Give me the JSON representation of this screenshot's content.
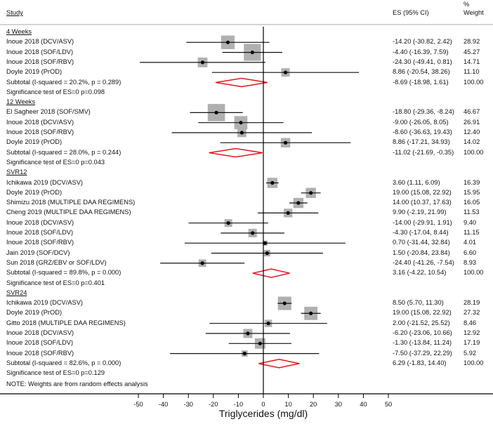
{
  "chart_data": {
    "type": "forest",
    "xlabel": "Triglycerides (mg/dl)",
    "xlim": [
      -50,
      50
    ],
    "xticks": [
      -50,
      -40,
      -30,
      -20,
      -10,
      0,
      10,
      20,
      30,
      40,
      50
    ],
    "headers": {
      "study": "Study",
      "es": "ES (95% CI)",
      "weight_pct": "%",
      "weight": "Weight"
    },
    "note": "NOTE: Weights are from random effects analysis",
    "groups": [
      {
        "name": "4 Weeks",
        "studies": [
          {
            "label": "Inoue 2018 (DCV/ASV)",
            "es": -14.2,
            "lo": -30.82,
            "hi": 2.42,
            "es_text": "-14.20 (-30.82, 2.42)",
            "weight": "28.92"
          },
          {
            "label": "Inoue 2018 (SOF/LDV)",
            "es": -4.4,
            "lo": -16.39,
            "hi": 7.59,
            "es_text": "-4.40 (-16.39, 7.59)",
            "weight": "45.27"
          },
          {
            "label": "Inoue 2018 (SOF/RBV)",
            "es": -24.3,
            "lo": -49.41,
            "hi": 0.81,
            "es_text": "-24.30 (-49.41, 0.81)",
            "weight": "14.71"
          },
          {
            "label": "Doyle 2019 (PrOD)",
            "es": 8.86,
            "lo": -20.54,
            "hi": 38.26,
            "es_text": "8.86 (-20.54, 38.26)",
            "weight": "11.10"
          }
        ],
        "subtotal": {
          "label": "Subtotal  (I-squared = 20.2%, p = 0.289)",
          "es": -8.69,
          "lo": -18.98,
          "hi": 1.61,
          "es_text": "-8.69 (-18.98, 1.61)",
          "weight": "100.00"
        },
        "sig": "Significance test of ES=0 p=0.098"
      },
      {
        "name": "12 Weeks",
        "studies": [
          {
            "label": "El Sagheer 2018 (SOF/SMV)",
            "es": -18.8,
            "lo": -29.36,
            "hi": -8.24,
            "es_text": "-18.80 (-29.36, -8.24)",
            "weight": "46.67"
          },
          {
            "label": "Inoue 2018 (DCV/ASV)",
            "es": -9.0,
            "lo": -26.05,
            "hi": 8.05,
            "es_text": "-9.00 (-26.05, 8.05)",
            "weight": "26.91"
          },
          {
            "label": "Inoue 2018 (SOF/RBV)",
            "es": -8.6,
            "lo": -36.63,
            "hi": 19.43,
            "es_text": "-8.60 (-36.63, 19.43)",
            "weight": "12.40"
          },
          {
            "label": "Doyle 2019 (PrOD)",
            "es": 8.86,
            "lo": -17.21,
            "hi": 34.93,
            "es_text": "8.86 (-17.21, 34.93)",
            "weight": "14.02"
          }
        ],
        "subtotal": {
          "label": "Subtotal  (I-squared = 28.0%, p = 0.244)",
          "es": -11.02,
          "lo": -21.69,
          "hi": -0.35,
          "es_text": "-11.02 (-21.69, -0.35)",
          "weight": "100.00"
        },
        "sig": "Significance test of ES=0 p=0.043"
      },
      {
        "name": "SVR12",
        "studies": [
          {
            "label": "Ichikawa 2019 (DCV/ASV)",
            "es": 3.6,
            "lo": 1.11,
            "hi": 6.09,
            "es_text": "3.60 (1.11, 6.09)",
            "weight": "16.39"
          },
          {
            "label": "Doyle 2019 (PrOD)",
            "es": 19.0,
            "lo": 15.08,
            "hi": 22.92,
            "es_text": "19.00 (15.08, 22.92)",
            "weight": "15.95"
          },
          {
            "label": "Shimizu 2018 (MULTIPLE DAA REGIMENS)",
            "es": 14.0,
            "lo": 10.37,
            "hi": 17.63,
            "es_text": "14.00 (10.37, 17.63)",
            "weight": "16.05"
          },
          {
            "label": "Cheng 2019 (MULTIPLE DAA REGIMENS)",
            "es": 9.9,
            "lo": -2.19,
            "hi": 21.99,
            "es_text": "9.90 (-2.19, 21.99)",
            "weight": "11.53"
          },
          {
            "label": "Inoue 2018 (DCV/ASV)",
            "es": -14.0,
            "lo": -29.91,
            "hi": 1.91,
            "es_text": "-14.00 (-29.91, 1.91)",
            "weight": "9.40"
          },
          {
            "label": "Inoue 2018 (SOF/LDV)",
            "es": -4.3,
            "lo": -17.04,
            "hi": 8.44,
            "es_text": "-4.30 (-17.04, 8.44)",
            "weight": "11.15"
          },
          {
            "label": "Inoue 2018 (SOF/RBV)",
            "es": 0.7,
            "lo": -31.44,
            "hi": 32.84,
            "es_text": "0.70 (-31.44, 32.84)",
            "weight": "4.01"
          },
          {
            "label": "Jain 2019 (SOF/DCV)",
            "es": 1.5,
            "lo": -20.84,
            "hi": 23.84,
            "es_text": "1.50 (-20.84, 23.84)",
            "weight": "6.60"
          },
          {
            "label": "Sun 2018 (GRZ/EBV or SOF/LDV)",
            "es": -24.4,
            "lo": -41.26,
            "hi": -7.54,
            "es_text": "-24.40 (-41.26, -7.54)",
            "weight": "8.93"
          }
        ],
        "subtotal": {
          "label": "Subtotal  (I-squared = 89.8%, p = 0.000)",
          "es": 3.16,
          "lo": -4.22,
          "hi": 10.54,
          "es_text": "3.16 (-4.22, 10.54)",
          "weight": "100.00"
        },
        "sig": "Significance test of ES=0 p=0.401"
      },
      {
        "name": "SVR24",
        "studies": [
          {
            "label": "Ichikawa 2019 (DCV/ASV)",
            "es": 8.5,
            "lo": 5.7,
            "hi": 11.3,
            "es_text": "8.50 (5.70, 11.30)",
            "weight": "28.19"
          },
          {
            "label": "Doyle 2019 (PrOD)",
            "es": 19.0,
            "lo": 15.08,
            "hi": 22.92,
            "es_text": "19.00 (15.08, 22.92)",
            "weight": "27.32"
          },
          {
            "label": "Gitto 2018 (MULTIPLE DAA REGIMENS)",
            "es": 2.0,
            "lo": -21.52,
            "hi": 25.52,
            "es_text": "2.00 (-21.52, 25.52)",
            "weight": "8.46"
          },
          {
            "label": "Inoue 2018 (DCV/ASV)",
            "es": -6.2,
            "lo": -23.06,
            "hi": 10.66,
            "es_text": "-6.20 (-23.06, 10.66)",
            "weight": "12.92"
          },
          {
            "label": "Inoue 2018 (SOF/LDV)",
            "es": -1.3,
            "lo": -13.84,
            "hi": 11.24,
            "es_text": "-1.30 (-13.84, 11.24)",
            "weight": "17.19"
          },
          {
            "label": "Inoue 2018 (SOF/RBV)",
            "es": -7.5,
            "lo": -37.29,
            "hi": 22.29,
            "es_text": "-7.50 (-37.29, 22.29)",
            "weight": "5.92"
          }
        ],
        "subtotal": {
          "label": "Subtotal  (I-squared = 82.6%, p = 0.000)",
          "es": 6.29,
          "lo": -1.83,
          "hi": 14.4,
          "es_text": "6.29 (-1.83, 14.40)",
          "weight": "100.00"
        },
        "sig": "Significance test of ES=0 p=0.129"
      }
    ],
    "colors": {
      "box": "#b0b0b0",
      "diamond": "#e8141b",
      "line": "#111111"
    }
  }
}
